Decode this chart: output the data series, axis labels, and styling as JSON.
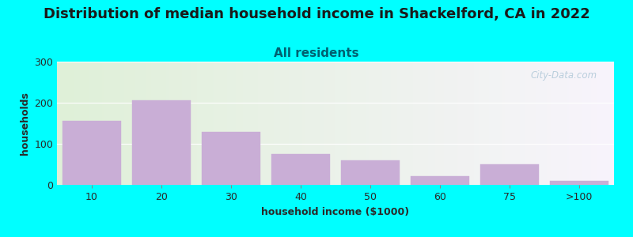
{
  "title": "Distribution of median household income in Shackelford, CA in 2022",
  "subtitle": "All residents",
  "xlabel": "household income ($1000)",
  "ylabel": "households",
  "background_color": "#00FFFF",
  "plot_bg_color_left": "#dff0d8",
  "plot_bg_color_right": "#f8f4fc",
  "bar_color": "#c9aed6",
  "bar_edgecolor": "#c9aed6",
  "categories": [
    "10",
    "20",
    "30",
    "40",
    "50",
    "60",
    "75",
    ">100"
  ],
  "values": [
    155,
    205,
    128,
    75,
    60,
    22,
    50,
    10
  ],
  "ylim": [
    0,
    300
  ],
  "yticks": [
    0,
    100,
    200,
    300
  ],
  "title_fontsize": 13,
  "subtitle_fontsize": 11,
  "axis_label_fontsize": 9,
  "tick_fontsize": 9,
  "watermark_text": "City-Data.com",
  "title_color": "#1a1a1a",
  "subtitle_color": "#006070",
  "axis_label_color": "#2a2a2a",
  "tick_color": "#2a2a2a",
  "watermark_color": "#b0c8d8"
}
